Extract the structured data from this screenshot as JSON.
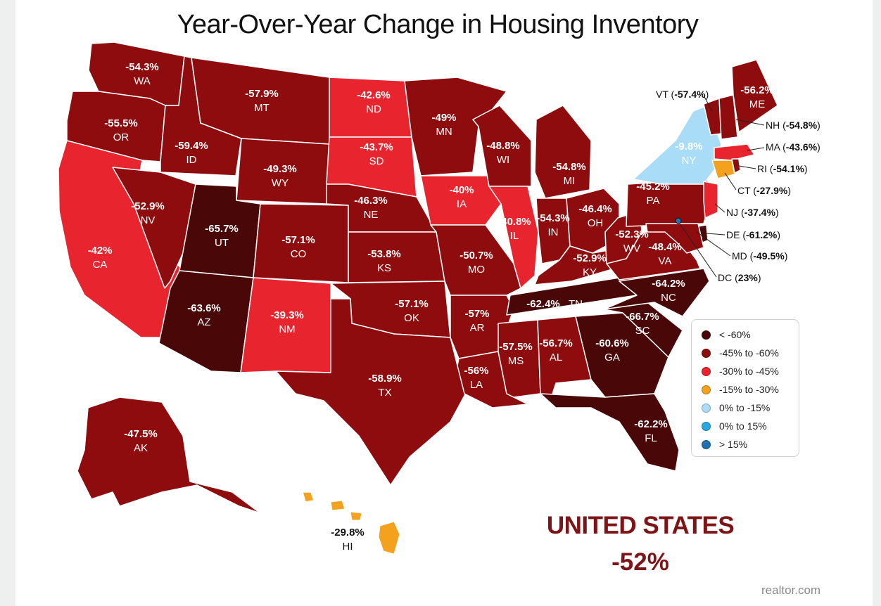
{
  "title": "Year-Over-Year Change in Housing Inventory",
  "colors": {
    "lt_neg60": "#4a0707",
    "neg45_neg60": "#8e0c0e",
    "neg30_neg45": "#e8242e",
    "neg15_neg30": "#f4a11e",
    "zero_neg15": "#a9dcf6",
    "zero_15": "#27a9e1",
    "gt15": "#1f6fb2"
  },
  "states": [
    {
      "abbr": "WA",
      "value": "-54.3%",
      "bin": "neg45_neg60"
    },
    {
      "abbr": "OR",
      "value": "-55.5%",
      "bin": "neg45_neg60"
    },
    {
      "abbr": "CA",
      "value": "-42%",
      "bin": "neg30_neg45"
    },
    {
      "abbr": "ID",
      "value": "-59.4%",
      "bin": "neg45_neg60"
    },
    {
      "abbr": "NV",
      "value": "-52.9%",
      "bin": "neg45_neg60"
    },
    {
      "abbr": "MT",
      "value": "-57.9%",
      "bin": "neg45_neg60"
    },
    {
      "abbr": "WY",
      "value": "-49.3%",
      "bin": "neg45_neg60"
    },
    {
      "abbr": "UT",
      "value": "-65.7%",
      "bin": "lt_neg60"
    },
    {
      "abbr": "AZ",
      "value": "-63.6%",
      "bin": "lt_neg60"
    },
    {
      "abbr": "CO",
      "value": "-57.1%",
      "bin": "neg45_neg60"
    },
    {
      "abbr": "NM",
      "value": "-39.3%",
      "bin": "neg30_neg45"
    },
    {
      "abbr": "ND",
      "value": "-42.6%",
      "bin": "neg30_neg45"
    },
    {
      "abbr": "SD",
      "value": "-43.7%",
      "bin": "neg30_neg45"
    },
    {
      "abbr": "NE",
      "value": "-46.3%",
      "bin": "neg45_neg60"
    },
    {
      "abbr": "KS",
      "value": "-53.8%",
      "bin": "neg45_neg60"
    },
    {
      "abbr": "OK",
      "value": "-57.1%",
      "bin": "neg45_neg60"
    },
    {
      "abbr": "TX",
      "value": "-58.9%",
      "bin": "neg45_neg60"
    },
    {
      "abbr": "MN",
      "value": "-49%",
      "bin": "neg45_neg60"
    },
    {
      "abbr": "IA",
      "value": "-40%",
      "bin": "neg30_neg45"
    },
    {
      "abbr": "MO",
      "value": "-50.7%",
      "bin": "neg45_neg60"
    },
    {
      "abbr": "AR",
      "value": "-57%",
      "bin": "neg45_neg60"
    },
    {
      "abbr": "LA",
      "value": "-56%",
      "bin": "neg45_neg60"
    },
    {
      "abbr": "WI",
      "value": "-48.8%",
      "bin": "neg45_neg60"
    },
    {
      "abbr": "IL",
      "value": "-40.8%",
      "bin": "neg30_neg45"
    },
    {
      "abbr": "MI",
      "value": "-54.8%",
      "bin": "neg45_neg60"
    },
    {
      "abbr": "IN",
      "value": "-54.3%",
      "bin": "neg45_neg60"
    },
    {
      "abbr": "OH",
      "value": "-46.4%",
      "bin": "neg45_neg60"
    },
    {
      "abbr": "KY",
      "value": "-52.9%",
      "bin": "neg45_neg60"
    },
    {
      "abbr": "TN",
      "value": "-62.4%",
      "bin": "lt_neg60"
    },
    {
      "abbr": "MS",
      "value": "-57.5%",
      "bin": "neg45_neg60"
    },
    {
      "abbr": "AL",
      "value": "-56.7%",
      "bin": "neg45_neg60"
    },
    {
      "abbr": "GA",
      "value": "-60.6%",
      "bin": "lt_neg60"
    },
    {
      "abbr": "FL",
      "value": "-62.2%",
      "bin": "lt_neg60"
    },
    {
      "abbr": "SC",
      "value": "-66.7%",
      "bin": "lt_neg60"
    },
    {
      "abbr": "NC",
      "value": "-64.2%",
      "bin": "lt_neg60"
    },
    {
      "abbr": "VA",
      "value": "-48.4%",
      "bin": "neg45_neg60"
    },
    {
      "abbr": "WV",
      "value": "-52.3%",
      "bin": "neg45_neg60"
    },
    {
      "abbr": "PA",
      "value": "-45.2%",
      "bin": "neg45_neg60"
    },
    {
      "abbr": "NY",
      "value": "-9.8%",
      "bin": "zero_neg15"
    },
    {
      "abbr": "ME",
      "value": "-56.2%",
      "bin": "neg45_neg60"
    },
    {
      "abbr": "AK",
      "value": "-47.5%",
      "bin": "neg45_neg60"
    },
    {
      "abbr": "HI",
      "value": "-29.8%",
      "bin": "neg15_neg30"
    }
  ],
  "callouts": [
    {
      "abbr": "VT",
      "value": "-57.4%",
      "bin": "neg45_neg60"
    },
    {
      "abbr": "NH",
      "value": "-54.8%",
      "bin": "neg45_neg60"
    },
    {
      "abbr": "MA",
      "value": "-43.6%",
      "bin": "neg30_neg45"
    },
    {
      "abbr": "RI",
      "value": "-54.1%",
      "bin": "neg45_neg60"
    },
    {
      "abbr": "CT",
      "value": "-27.9%",
      "bin": "neg15_neg30"
    },
    {
      "abbr": "NJ",
      "value": "-37.4%",
      "bin": "neg30_neg45"
    },
    {
      "abbr": "DE",
      "value": "-61.2%",
      "bin": "lt_neg60"
    },
    {
      "abbr": "MD",
      "value": "-49.5%",
      "bin": "neg45_neg60"
    },
    {
      "abbr": "DC",
      "value": "23%",
      "bin": "gt15"
    }
  ],
  "legend": [
    {
      "label": "< -60%",
      "bin": "lt_neg60"
    },
    {
      "label": "-45% to -60%",
      "bin": "neg45_neg60"
    },
    {
      "label": "-30% to -45%",
      "bin": "neg30_neg45"
    },
    {
      "label": "-15% to -30%",
      "bin": "neg15_neg30"
    },
    {
      "label": "0% to -15%",
      "bin": "zero_neg15"
    },
    {
      "label": "0% to 15%",
      "bin": "zero_15"
    },
    {
      "label": "> 15%",
      "bin": "gt15"
    }
  ],
  "national": {
    "name": "UNITED STATES",
    "value": "-52%"
  },
  "source": "realtor.com"
}
